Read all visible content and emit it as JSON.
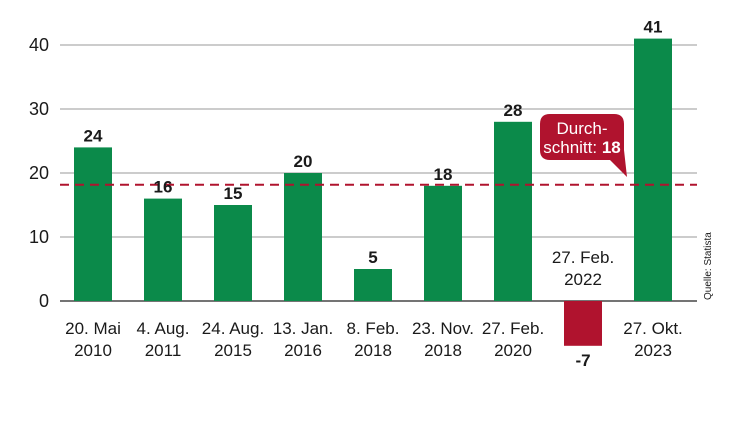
{
  "chart_data": {
    "type": "bar",
    "categories": [
      [
        "20. Mai",
        "2010"
      ],
      [
        "4. Aug.",
        "2011"
      ],
      [
        "24. Aug.",
        "2015"
      ],
      [
        "13. Jan.",
        "2016"
      ],
      [
        "8. Feb.",
        "2018"
      ],
      [
        "23. Nov.",
        "2018"
      ],
      [
        "27. Feb.",
        "2020"
      ],
      [
        "27. Feb.",
        "2022"
      ],
      [
        "27. Okt.",
        "2023"
      ]
    ],
    "values": [
      24,
      16,
      15,
      20,
      5,
      18,
      28,
      -7,
      41
    ],
    "ylim": [
      -7,
      42
    ],
    "yticks": [
      0,
      10,
      20,
      30,
      40
    ],
    "grid": true,
    "colors": {
      "positive": "#0b8a4a",
      "negative": "#b0132e",
      "average": "#b0132e",
      "grid": "#9a9a9a"
    },
    "average": {
      "value": 18,
      "label_line1": "Durch-",
      "label_line2": "schnitt: ",
      "label_value": "18"
    },
    "source": "Quelle: Statista"
  }
}
